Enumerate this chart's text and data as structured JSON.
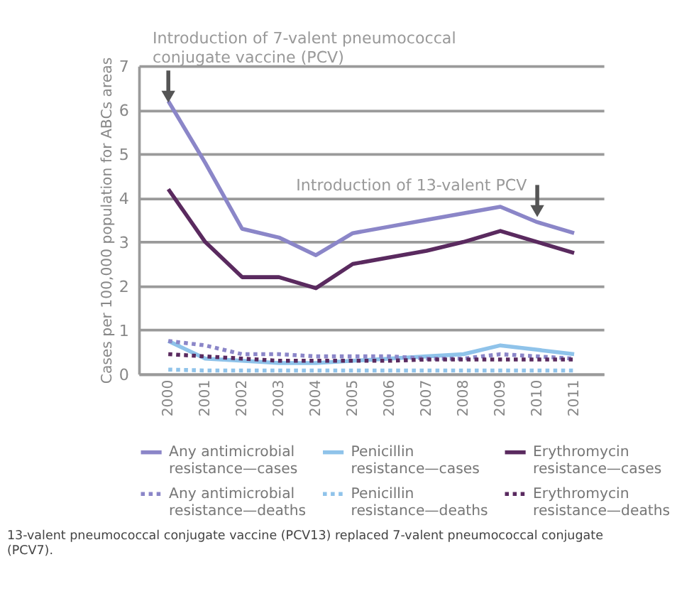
{
  "chart_data": {
    "type": "line",
    "ylabel": "Cases per 100,000 population for ABCs areas",
    "categories": [
      "2000",
      "2001",
      "2002",
      "2003",
      "2004",
      "2005",
      "2006",
      "2007",
      "2008",
      "2009",
      "2010",
      "2011"
    ],
    "ylim": [
      0,
      7
    ],
    "yticks": [
      0,
      1,
      2,
      3,
      4,
      5,
      6,
      7
    ],
    "grid": "y",
    "legend": "bottom",
    "marker": "none",
    "series": [
      {
        "name": "Any antimicrobial resistance—cases",
        "color": "#8b86c8",
        "line_style": "solid",
        "values": [
          6.2,
          4.8,
          3.3,
          3.1,
          2.7,
          3.2,
          3.35,
          3.5,
          3.65,
          3.8,
          3.45,
          3.2
        ]
      },
      {
        "name": "Penicillin resistance—cases",
        "color": "#8fc3ea",
        "line_style": "solid",
        "values": [
          0.75,
          0.35,
          0.3,
          0.25,
          0.25,
          0.3,
          0.35,
          0.4,
          0.45,
          0.65,
          0.55,
          0.45
        ]
      },
      {
        "name": "Erythromycin resistance—cases",
        "color": "#5a2a5f",
        "line_style": "solid",
        "values": [
          4.2,
          3.0,
          2.2,
          2.2,
          1.95,
          2.5,
          2.65,
          2.8,
          3.0,
          3.25,
          3.0,
          2.75
        ]
      },
      {
        "name": "Any antimicrobial resistance—deaths",
        "color": "#8b86c8",
        "line_style": "dotted",
        "values": [
          0.75,
          0.65,
          0.45,
          0.45,
          0.4,
          0.4,
          0.4,
          0.35,
          0.35,
          0.45,
          0.4,
          0.35
        ]
      },
      {
        "name": "Penicillin resistance—deaths",
        "color": "#8fc3ea",
        "line_style": "dotted",
        "values": [
          0.1,
          0.08,
          0.08,
          0.08,
          0.08,
          0.08,
          0.08,
          0.08,
          0.08,
          0.08,
          0.08,
          0.08
        ]
      },
      {
        "name": "Erythromycin resistance—deaths",
        "color": "#5a2a5f",
        "line_style": "dotted",
        "values": [
          0.45,
          0.4,
          0.35,
          0.3,
          0.3,
          0.3,
          0.3,
          0.33,
          0.33,
          0.33,
          0.33,
          0.33
        ]
      }
    ],
    "annotations": [
      {
        "text": "Introduction of 7-valent pneumococcal\nconjugate vaccine (PCV)",
        "x": "2000",
        "y": 6.3
      },
      {
        "text": "Introduction of 13-valent PCV",
        "x": "2010",
        "y": 3.7
      },
      "13-valent pneumococcal conjugate vaccine (PCV13) replaced 7-valent pneumococcal conjugate\n(PCV7)."
    ]
  }
}
